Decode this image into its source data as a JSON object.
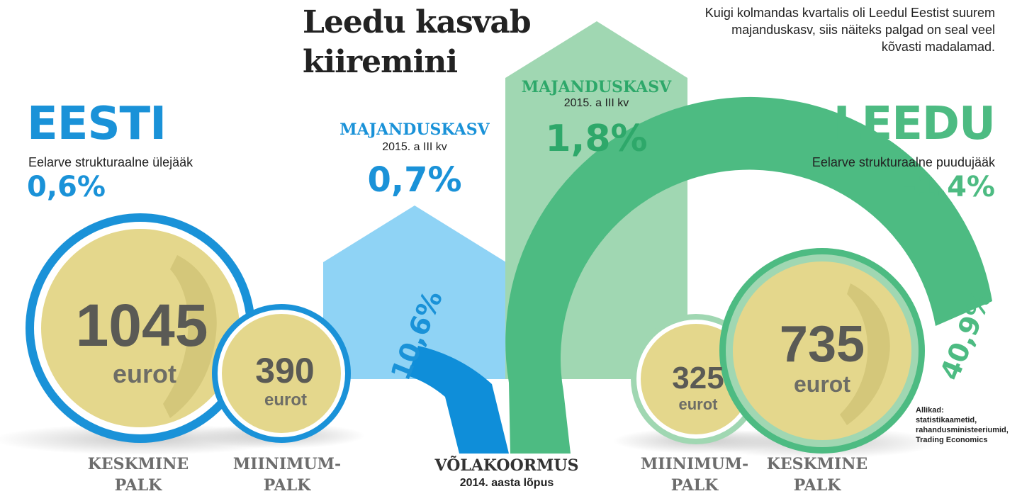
{
  "title": "Leedu kasvab kiiremini",
  "intro": "Kuigi kolmandas kvartalis oli Leedul Eestist suurem majanduskasv, siis näiteks palgad on seal veel kõvasti madalamad.",
  "colors": {
    "estonia_blue": "#1a92d8",
    "estonia_light": "#8fd3f5",
    "lithuania_green": "#4dbb82",
    "lithuania_light": "#a0d7b2",
    "coin_gold": "#e4d78c",
    "text_grey": "#6d6d6d"
  },
  "estonia": {
    "name": "EESTI",
    "budget_label": "Eelarve strukturaalne ülejääk",
    "budget_value": "0,6%",
    "growth_label": "MAJANDUSKASV",
    "growth_period": "2015. a III kv",
    "growth_value": "0,7%",
    "debt_value": "10,6%",
    "avg_wage_value": "1045",
    "avg_wage_unit": "eurot",
    "min_wage_value": "390",
    "min_wage_unit": "eurot",
    "avg_wage_caption_1": "KESKMINE",
    "avg_wage_caption_2": "PALK",
    "min_wage_caption_1": "MIINIMUM-",
    "min_wage_caption_2": "PALK"
  },
  "lithuania": {
    "name": "LEEDU",
    "budget_label": "Eelarve strukturaalne puudujääk",
    "budget_value": "–1,4%",
    "growth_label": "MAJANDUSKASV",
    "growth_period": "2015. a III kv",
    "growth_value": "1,8%",
    "debt_value": "40,9%",
    "avg_wage_value": "735",
    "avg_wage_unit": "eurot",
    "min_wage_value": "325",
    "min_wage_unit": "eurot",
    "avg_wage_caption_1": "KESKMINE",
    "avg_wage_caption_2": "PALK",
    "min_wage_caption_1": "MIINIMUM-",
    "min_wage_caption_2": "PALK"
  },
  "debt_caption": "VÕLAKOORMUS",
  "debt_period": "2014. aasta lõpus",
  "sources_1": "Allikad:",
  "sources_2": "statistikaametid,",
  "sources_3": "rahandusministeeriumid,",
  "sources_4": "Trading Economics"
}
